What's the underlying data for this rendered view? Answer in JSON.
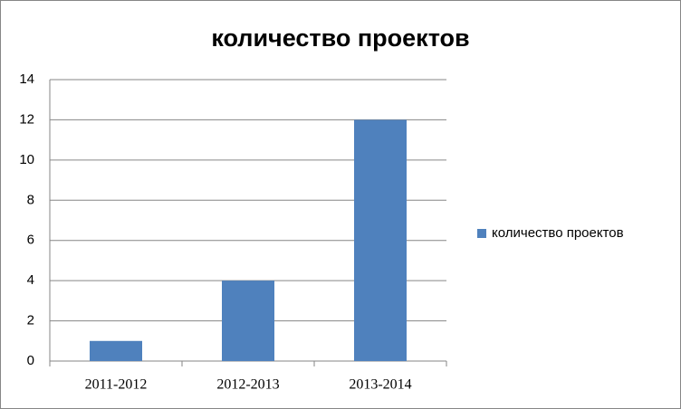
{
  "chart_data": {
    "type": "bar",
    "title": "количество проектов",
    "categories": [
      "2011-2012",
      "2012-2013",
      "2013-2014"
    ],
    "series": [
      {
        "name": "количество проектов",
        "color": "#4f81bd",
        "values": [
          1,
          4,
          12
        ]
      }
    ],
    "ylim": [
      0,
      14
    ],
    "yticks": [
      0,
      2,
      4,
      6,
      8,
      10,
      12,
      14
    ],
    "grid": true,
    "legend": "right"
  }
}
